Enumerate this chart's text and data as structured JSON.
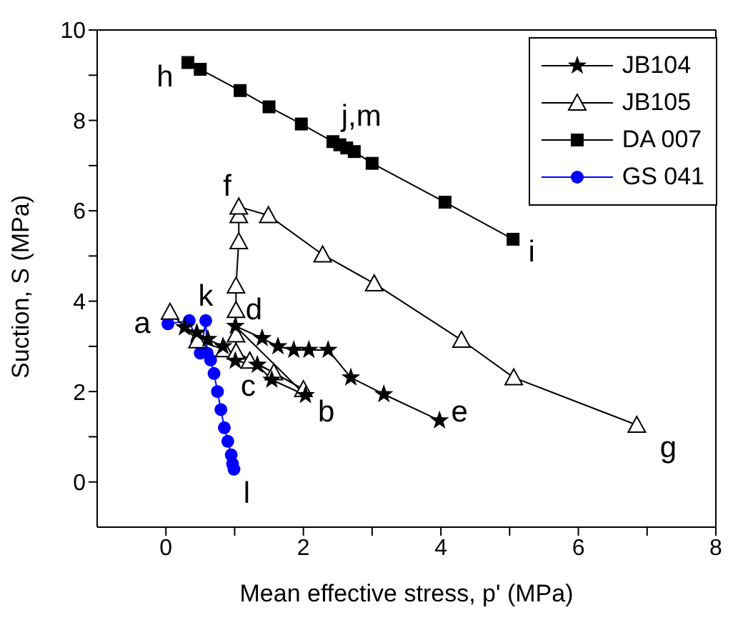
{
  "chart_data": {
    "type": "line",
    "xlabel": "Mean effective stress, p' (MPa)",
    "ylabel": "Suction, S (MPa)",
    "xlim": [
      -1,
      8
    ],
    "xticks": [
      0,
      {
        "value": 1,
        "label": null
      },
      2,
      {
        "value": 3,
        "label": null
      },
      4,
      {
        "value": 5,
        "label": null
      },
      6,
      {
        "value": 7,
        "label": null
      },
      8
    ],
    "ylim": [
      -1,
      10
    ],
    "yticks": [
      0,
      {
        "value": 1,
        "label": null
      },
      2,
      {
        "value": 3,
        "label": null
      },
      4,
      {
        "value": 5,
        "label": null
      },
      6,
      {
        "value": 7,
        "label": null
      },
      8,
      {
        "value": 9,
        "label": null
      },
      10
    ],
    "grid": false,
    "legend": "top right",
    "line_style": "solid",
    "series": [
      {
        "name": "JB104",
        "color": "#000000",
        "marker": "star",
        "x": [
          0.27,
          0.45,
          0.61,
          0.83,
          1.01,
          1.33,
          1.54,
          2.03,
          1.01,
          1.4,
          1.63,
          1.86,
          2.08,
          2.36,
          2.69,
          3.17,
          3.98
        ],
        "values": [
          3.42,
          3.3,
          3.16,
          3.0,
          2.68,
          2.59,
          2.26,
          1.92,
          3.45,
          3.18,
          3.0,
          2.92,
          2.92,
          2.92,
          2.31,
          1.94,
          1.36
        ]
      },
      {
        "name": "JB105",
        "color": "#000000",
        "marker": "triangle",
        "x": [
          0.06,
          0.46,
          0.85,
          1.22,
          1.57,
          2.0,
          1.02,
          1.02,
          1.02,
          1.02,
          1.06,
          1.06,
          1.06,
          1.49,
          2.28,
          3.03,
          4.3,
          5.06,
          6.85
        ],
        "values": [
          3.76,
          3.13,
          2.93,
          2.68,
          2.42,
          2.05,
          2.88,
          3.26,
          3.8,
          4.34,
          5.32,
          5.9,
          6.09,
          5.9,
          5.03,
          4.39,
          3.14,
          2.31,
          1.26
        ]
      },
      {
        "name": "DA 007",
        "color": "#000000",
        "marker": "square",
        "x": [
          0.32,
          0.5,
          1.08,
          1.5,
          1.97,
          2.43,
          2.53,
          2.63,
          2.74,
          3.0,
          4.06,
          5.05
        ],
        "values": [
          9.28,
          9.13,
          8.66,
          8.3,
          7.92,
          7.53,
          7.46,
          7.39,
          7.31,
          7.05,
          6.19,
          5.37
        ]
      },
      {
        "name": "GS 041",
        "color": "#0000ff",
        "marker": "circle",
        "x": [
          0.03,
          0.34,
          0.45,
          0.5,
          0.58,
          0.6,
          0.65,
          0.7,
          0.75,
          0.8,
          0.85,
          0.9,
          0.95,
          0.97,
          0.99
        ],
        "values": [
          3.5,
          3.57,
          3.1,
          2.85,
          3.57,
          2.85,
          2.7,
          2.4,
          2.0,
          1.6,
          1.2,
          0.9,
          0.6,
          0.4,
          0.28
        ]
      }
    ],
    "annotations": [
      {
        "text": "a",
        "x": 0.03,
        "y": 3.5
      },
      {
        "text": "b",
        "x": 2.0,
        "y": 2.05
      },
      {
        "text": "c",
        "x": 1.01,
        "y": 2.68
      },
      {
        "text": "d",
        "x": 1.01,
        "y": 3.45
      },
      {
        "text": "e",
        "x": 3.98,
        "y": 1.36
      },
      {
        "text": "f",
        "x": 1.06,
        "y": 6.09
      },
      {
        "text": "g",
        "x": 6.85,
        "y": 1.26
      },
      {
        "text": "h",
        "x": 0.32,
        "y": 9.28
      },
      {
        "text": "i",
        "x": 5.05,
        "y": 5.37
      },
      {
        "text": "j,m",
        "x": 2.53,
        "y": 7.46
      },
      {
        "text": "k",
        "x": 0.58,
        "y": 3.57
      },
      {
        "text": "l",
        "x": 0.99,
        "y": 0.28
      }
    ]
  }
}
